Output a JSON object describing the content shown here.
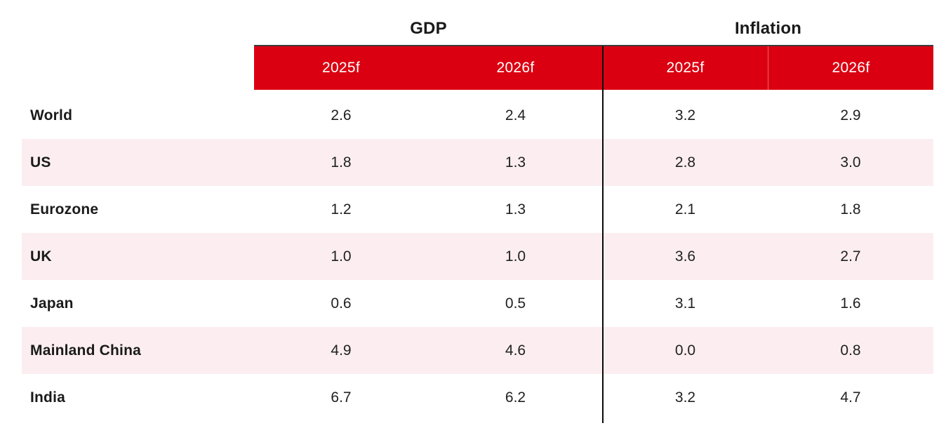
{
  "table": {
    "group_headers": {
      "gdp": "GDP",
      "inflation": "Inflation"
    },
    "column_headers": [
      "2025f",
      "2026f",
      "2025f",
      "2026f"
    ],
    "rows": [
      {
        "label": "World",
        "values": [
          "2.6",
          "2.4",
          "3.2",
          "2.9"
        ]
      },
      {
        "label": "US",
        "values": [
          "1.8",
          "1.3",
          "2.8",
          "3.0"
        ]
      },
      {
        "label": "Eurozone",
        "values": [
          "1.2",
          "1.3",
          "2.1",
          "1.8"
        ]
      },
      {
        "label": "UK",
        "values": [
          "1.0",
          "1.0",
          "3.6",
          "2.7"
        ]
      },
      {
        "label": "Japan",
        "values": [
          "0.6",
          "0.5",
          "3.1",
          "1.6"
        ]
      },
      {
        "label": "Mainland China",
        "values": [
          "4.9",
          "4.6",
          "0.0",
          "0.8"
        ]
      },
      {
        "label": "India",
        "values": [
          "6.7",
          "6.2",
          "3.2",
          "4.7"
        ]
      }
    ],
    "colors": {
      "header_red": "#DB0011",
      "header_text": "#ffffff",
      "row_stripe_pink": "#FCEEF0",
      "top_border_gray": "#3C3C3C",
      "divider_black": "#0A0A0A",
      "text_black": "#1A1A1A"
    }
  },
  "chart_data": {
    "type": "table",
    "title": "",
    "column_groups": [
      "GDP",
      "Inflation"
    ],
    "columns": [
      "GDP 2025f",
      "GDP 2026f",
      "Inflation 2025f",
      "Inflation 2026f"
    ],
    "rows": [
      "World",
      "US",
      "Eurozone",
      "UK",
      "Japan",
      "Mainland China",
      "India"
    ],
    "values": [
      [
        2.6,
        2.4,
        3.2,
        2.9
      ],
      [
        1.8,
        1.3,
        2.8,
        3.0
      ],
      [
        1.2,
        1.3,
        2.1,
        1.8
      ],
      [
        1.0,
        1.0,
        3.6,
        2.7
      ],
      [
        0.6,
        0.5,
        3.1,
        1.6
      ],
      [
        4.9,
        4.6,
        0.0,
        0.8
      ],
      [
        6.7,
        6.2,
        3.2,
        4.7
      ]
    ],
    "notes": "Forecast values (f). Alternating rows shaded light pink; red header band; black vertical rule separates GDP and Inflation column groups."
  }
}
